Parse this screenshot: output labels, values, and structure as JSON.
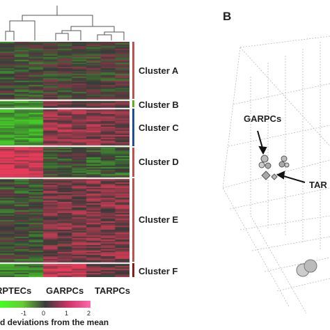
{
  "panel_a": {
    "clusters": [
      {
        "name": "Cluster A",
        "color": "#c0504d"
      },
      {
        "name": "Cluster B",
        "color": "#66aa22"
      },
      {
        "name": "Cluster C",
        "color": "#1f4e99"
      },
      {
        "name": "Cluster D",
        "color": "#c0504d"
      },
      {
        "name": "Cluster E",
        "color": "#c0504d"
      },
      {
        "name": "Cluster F",
        "color": "#8b1a1a"
      }
    ],
    "groups": [
      "RPTECs",
      "GARPCs",
      "TARPCs"
    ],
    "colorbar_ticks": [
      "-1",
      "0",
      "1",
      "2"
    ],
    "colorbar_caption": "d deviations from the mean",
    "colors": {
      "low": "#66cc33",
      "mid": "#3a3a3a",
      "high": "#ff66aa"
    }
  },
  "panel_b": {
    "letter": "B",
    "labels": [
      "GARPCs",
      "TAR"
    ]
  }
}
